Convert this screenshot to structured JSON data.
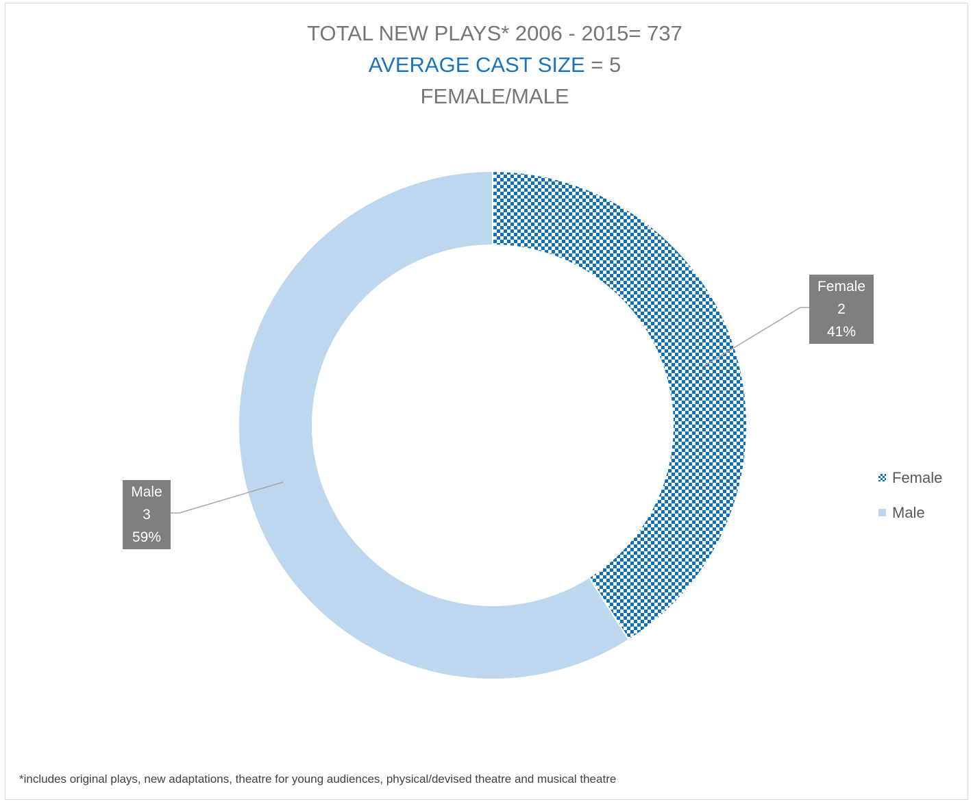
{
  "title": {
    "line1": "TOTAL NEW PLAYS* 2006 - 2015= 737",
    "line2_accent": "AVERAGE CAST SIZE",
    "line2_rest": " = 5",
    "line3": "FEMALE/MALE"
  },
  "chart_data": {
    "type": "pie",
    "subtype": "doughnut",
    "title": "TOTAL NEW PLAYS* 2006 - 2015= 737 / AVERAGE CAST SIZE = 5 / FEMALE/MALE",
    "categories": [
      "Female",
      "Male"
    ],
    "values": [
      2,
      3
    ],
    "percentages": [
      "41%",
      "59%"
    ],
    "percent_values": [
      41,
      59
    ],
    "colors": {
      "female_pattern_fg": "#0e6fba",
      "female_pattern_bg": "#ffffff",
      "male": "#bdd7ee",
      "accent": "#1a73bb",
      "label_box": "#7f7f7f"
    },
    "legend_position": "right"
  },
  "data_labels": [
    {
      "name": "Female",
      "value": "2",
      "percent": "41%"
    },
    {
      "name": "Male",
      "value": "3",
      "percent": "59%"
    }
  ],
  "legend": [
    {
      "label": "Female",
      "icon": "checker-swatch"
    },
    {
      "label": "Male",
      "icon": "solid-swatch"
    }
  ],
  "footnote": "*includes original plays, new adaptations, theatre for young audiences, physical/devised theatre and musical theatre"
}
